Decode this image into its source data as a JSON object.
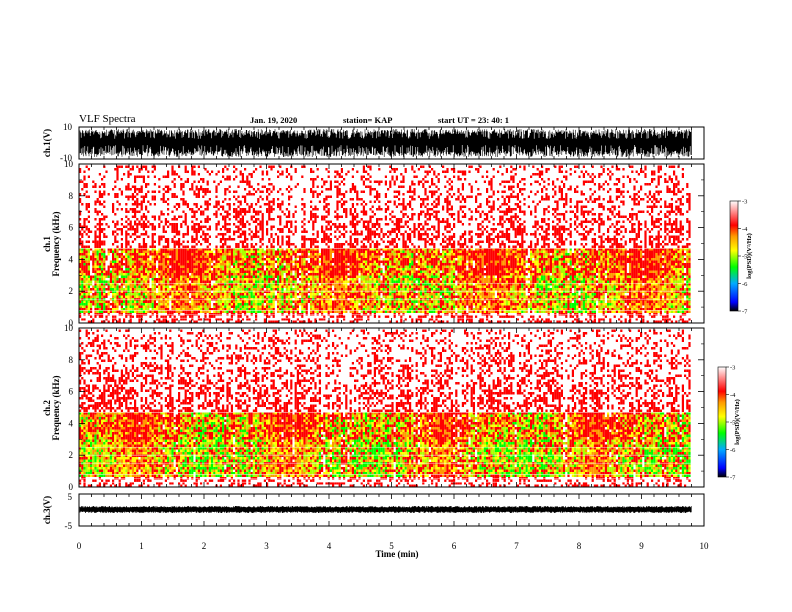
{
  "header": {
    "title": "VLF Spectra",
    "date": "Jan. 19, 2020",
    "station": "station= KAP",
    "start": "start  UT  =   23: 40: 1"
  },
  "chart_data": [
    {
      "type": "line",
      "name": "ch1-waveform",
      "ylabel": "ch.1(V)",
      "ylim": [
        -10,
        10
      ],
      "y_ticks": [
        "10",
        "-10"
      ],
      "x_range_min": [
        0,
        10
      ]
    },
    {
      "type": "heatmap",
      "name": "ch1-spectrogram",
      "ylabel": "ch.1\nFrequency  (kHz)",
      "ylim": [
        0,
        10
      ],
      "y_ticks": [
        "0",
        "2",
        "4",
        "6",
        "8",
        "10"
      ],
      "x_range_min": [
        0,
        9.8
      ],
      "colorbar": {
        "label": "log(PSD)(V²/Hz)",
        "range": [
          -7,
          -3
        ],
        "ticks": [
          "-3",
          "-4",
          "-5",
          "-6",
          "-7"
        ]
      }
    },
    {
      "type": "heatmap",
      "name": "ch2-spectrogram",
      "ylabel": "ch.2\nFrequency  (kHz)",
      "ylim": [
        0,
        10
      ],
      "y_ticks": [
        "0",
        "2",
        "4",
        "6",
        "8",
        "10"
      ],
      "x_range_min": [
        0,
        9.8
      ],
      "colorbar": {
        "label": "log(PSD)(V²/Hz)",
        "range": [
          -7,
          -3
        ],
        "ticks": [
          "-3",
          "-4",
          "-5",
          "-6",
          "-7"
        ]
      }
    },
    {
      "type": "line",
      "name": "ch3-waveform",
      "ylabel": "ch.3(V)",
      "ylim": [
        -5,
        5
      ],
      "y_ticks": [
        "5",
        "-5"
      ],
      "x_range_min": [
        0,
        9.8
      ]
    }
  ],
  "x_axis": {
    "label": "Time  (min)",
    "ticks": [
      "0",
      "1",
      "2",
      "3",
      "4",
      "5",
      "6",
      "7",
      "8",
      "9",
      "10"
    ],
    "range": [
      0,
      10
    ]
  },
  "colorscale": [
    "#000000",
    "#0000ff",
    "#00aaff",
    "#00ff00",
    "#aaff00",
    "#ffff00",
    "#ff9900",
    "#ff0000",
    "#ffffff"
  ]
}
